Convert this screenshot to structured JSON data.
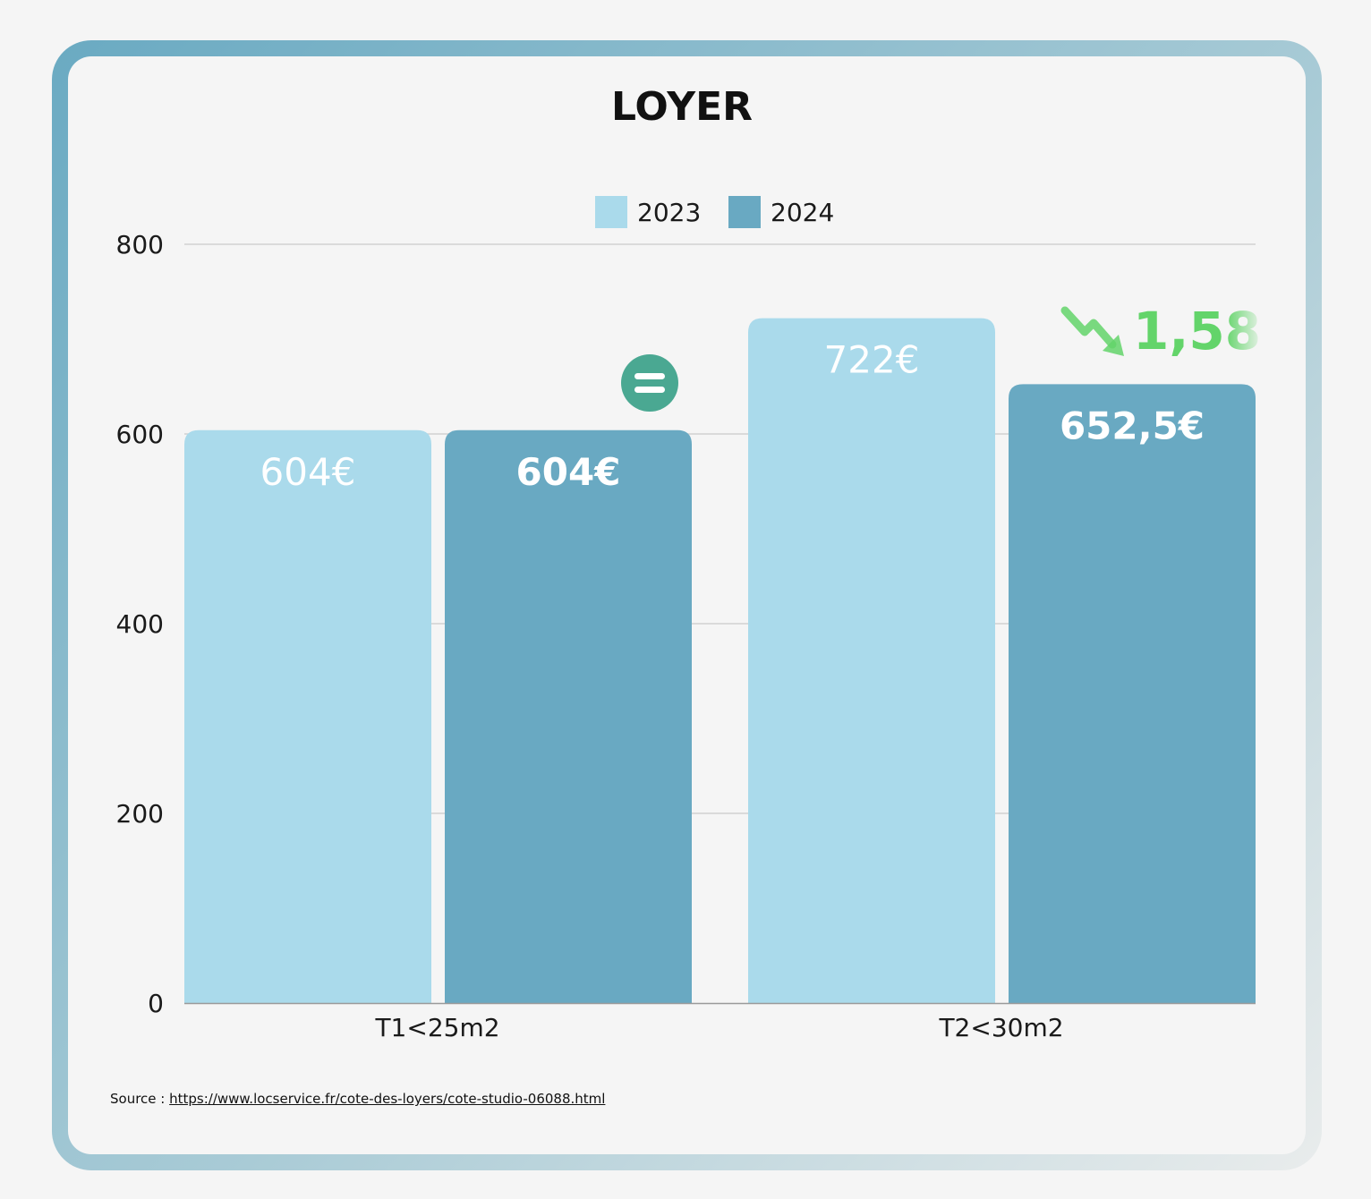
{
  "chart_data": {
    "type": "bar",
    "title": "LOYER",
    "categories": [
      "T1<25m2",
      "T2<30m2"
    ],
    "series": [
      {
        "name": "2023",
        "values": [
          604,
          722
        ],
        "labels": [
          "604€",
          "722€"
        ],
        "color": "#aadaeb"
      },
      {
        "name": "2024",
        "values": [
          604,
          652.5
        ],
        "labels": [
          "604€",
          "652,5€"
        ],
        "color": "#69a9c2"
      }
    ],
    "ylim": [
      0,
      800
    ],
    "yticks": [
      "0",
      "200",
      "400",
      "600",
      "800"
    ],
    "grid": true,
    "legend_position": "top-center",
    "annotations": [
      {
        "category": "T1<25m2",
        "type": "equal-icon",
        "color": "#4aa892"
      },
      {
        "category": "T2<30m2",
        "type": "down-trend-arrow",
        "text": "1,58",
        "color": "#63d46a"
      }
    ]
  },
  "source": {
    "prefix": "Source : ",
    "link_text": "https://www.locservice.fr/cote-des-loyers/cote-studio-06088.html"
  }
}
